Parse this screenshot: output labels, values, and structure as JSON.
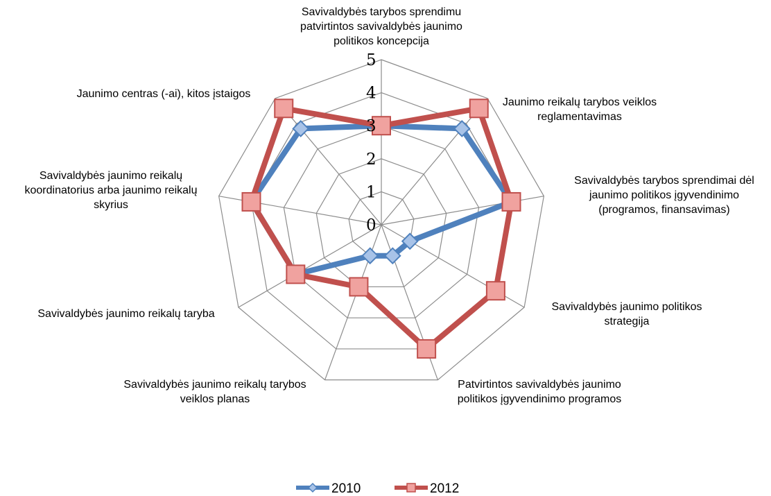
{
  "chart_data": {
    "type": "radar",
    "rmin": 0,
    "rmax": 5,
    "ticks": [
      "0",
      "1",
      "2",
      "3",
      "4",
      "5"
    ],
    "categories": [
      "Savivaldybės tarybos sprendimu patvirtintos savivaldybės jaunimo politikos koncepcija",
      "Jaunimo reikalų tarybos veiklos reglamentavimas",
      "Savivaldybės tarybos sprendimai dėl jaunimo politikos įgyvendinimo (programos, finansavimas)",
      "Savivaldybės jaunimo politikos strategija",
      "Patvirtintos savivaldybės jaunimo politikos įgyvendinimo programos",
      "Savivaldybės jaunimo reikalų tarybos veiklos planas",
      "Savivaldybės jaunimo reikalų taryba",
      "Savivaldybės jaunimo reikalų koordinatorius arba jaunimo reikalų skyrius",
      "Jaunimo centras (-ai), kitos įstaigos"
    ],
    "category_lines": [
      [
        "Savivaldybės tarybos sprendimu",
        "patvirtintos savivaldybės jaunimo",
        "politikos koncepcija"
      ],
      [
        "Jaunimo reikalų tarybos veiklos",
        "reglamentavimas"
      ],
      [
        "Savivaldybės tarybos sprendimai dėl",
        "jaunimo politikos įgyvendinimo",
        "(programos, finansavimas)"
      ],
      [
        "Savivaldybės jaunimo politikos",
        "strategija"
      ],
      [
        "Patvirtintos savivaldybės jaunimo",
        "politikos įgyvendinimo programos"
      ],
      [
        "Savivaldybės jaunimo reikalų tarybos",
        "veiklos planas"
      ],
      [
        "Savivaldybės jaunimo reikalų taryba"
      ],
      [
        "Savivaldybės jaunimo reikalų",
        "koordinatorius arba jaunimo reikalų",
        "skyrius"
      ],
      [
        "Jaunimo centras (-ai), kitos įstaigos"
      ]
    ],
    "series": [
      {
        "name": "2010",
        "color": "#4f81bd",
        "marker": "diamond",
        "values": [
          3,
          3.8,
          4,
          1,
          1,
          1,
          3,
          4,
          3.8
        ]
      },
      {
        "name": "2012",
        "color": "#c0504d",
        "marker": "square",
        "values": [
          3,
          4.6,
          4,
          4,
          4,
          2,
          3,
          4,
          4.6
        ]
      }
    ],
    "legend_position": "bottom",
    "grid": true
  }
}
